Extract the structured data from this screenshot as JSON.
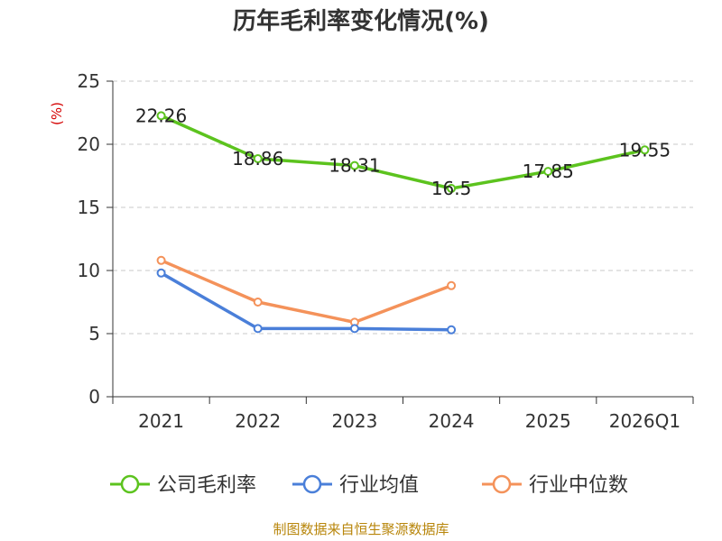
{
  "chart_data": {
    "type": "line",
    "title": "历年毛利率变化情况(%)",
    "ylabel": "(%)",
    "xlabel": "",
    "categories": [
      "2021",
      "2022",
      "2023",
      "2024",
      "2025",
      "2026Q1"
    ],
    "ylim": [
      0,
      25
    ],
    "yticks": [
      0,
      5,
      10,
      15,
      20,
      25
    ],
    "grid": true,
    "legend_position": "bottom",
    "series": [
      {
        "name": "公司毛利率",
        "color": "#5cc31e",
        "values": [
          22.26,
          18.86,
          18.31,
          16.5,
          17.85,
          19.55
        ],
        "data_labels": [
          "22.26",
          "18.86",
          "18.31",
          "16.5",
          "17.85",
          "19.55"
        ]
      },
      {
        "name": "行业均值",
        "color": "#4a7fd9",
        "values": [
          9.8,
          5.4,
          5.4,
          5.3,
          null,
          null
        ]
      },
      {
        "name": "行业中位数",
        "color": "#f4925a",
        "values": [
          10.8,
          7.5,
          5.9,
          8.8,
          null,
          null
        ]
      }
    ],
    "source": "制图数据来自恒生聚源数据库"
  }
}
